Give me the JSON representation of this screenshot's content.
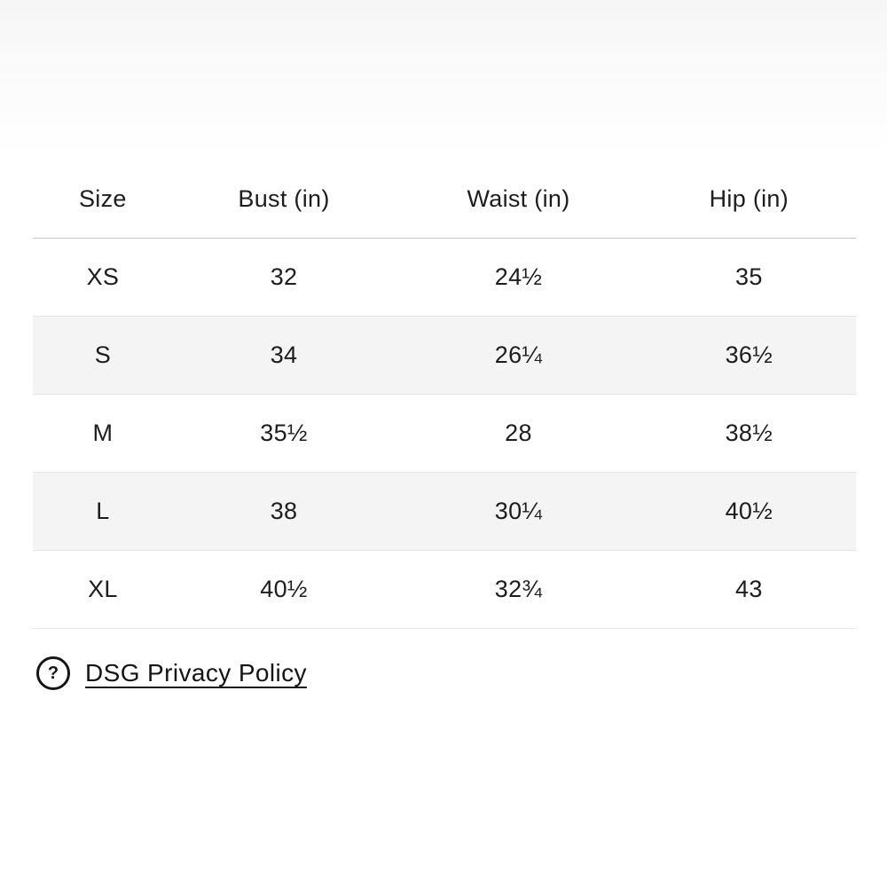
{
  "size_chart": {
    "columns": [
      "Size",
      "Bust (in)",
      "Waist (in)",
      "Hip (in)"
    ],
    "rows": [
      [
        "XS",
        "32",
        "24½",
        "35"
      ],
      [
        "S",
        "34",
        "26¼",
        "36½"
      ],
      [
        "M",
        "35½",
        "28",
        "38½"
      ],
      [
        "L",
        "38",
        "30¼",
        "40½"
      ],
      [
        "XL",
        "40½",
        "32¾",
        "43"
      ]
    ]
  },
  "footer": {
    "help_icon": "?",
    "privacy_link_label": "DSG Privacy Policy"
  },
  "colors": {
    "text": "#1d1d1d",
    "row_stripe": "#f4f4f4",
    "row_border": "#e4e4e4",
    "header_border": "#c4c4c4"
  }
}
